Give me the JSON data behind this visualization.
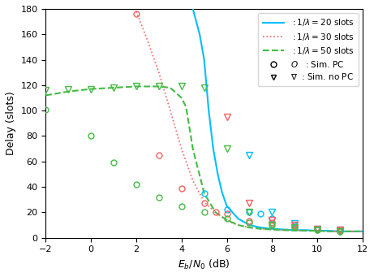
{
  "title": "",
  "xlabel": "E_b/N_0 (dB)",
  "ylabel": "Delay (slots)",
  "xlim": [
    -2,
    12
  ],
  "ylim": [
    0,
    180
  ],
  "xticks": [
    -2,
    0,
    2,
    4,
    6,
    8,
    10,
    12
  ],
  "yticks": [
    0,
    20,
    40,
    60,
    80,
    100,
    120,
    140,
    160,
    180
  ],
  "color_20": "#00BFFF",
  "color_30": "#FF6060",
  "color_50": "#44BB44",
  "analytical_20_x": [
    4.5,
    4.8,
    5.0,
    5.2,
    5.4,
    5.6,
    5.8,
    6.0,
    6.5,
    7.0,
    7.5,
    8.0,
    8.5,
    9.0,
    9.5,
    10.0,
    10.5,
    11.0,
    11.5,
    12.0
  ],
  "analytical_20_y": [
    180,
    160,
    140,
    100,
    70,
    50,
    35,
    25,
    15,
    10,
    8,
    7,
    6.5,
    6,
    6,
    5.5,
    5.5,
    5,
    5,
    5
  ],
  "analytical_30_x": [
    2.0,
    2.5,
    3.0,
    3.5,
    4.0,
    4.5,
    5.0,
    5.5,
    5.8,
    6.0,
    6.2,
    6.5,
    7.0,
    7.5,
    8.0,
    8.5,
    9.0,
    9.5,
    10.0,
    10.5,
    11.0,
    11.5,
    12.0
  ],
  "analytical_30_y": [
    178,
    155,
    130,
    100,
    70,
    45,
    28,
    20,
    16,
    14,
    12,
    10,
    8,
    7,
    6.5,
    6,
    5.8,
    5.5,
    5.5,
    5,
    5,
    5,
    5
  ],
  "analytical_50_x": [
    -2,
    -1,
    0,
    1,
    2,
    3,
    3.5,
    4.0,
    4.2,
    4.5,
    5.0,
    5.5,
    6.0,
    6.5,
    7.0,
    7.5,
    8.0,
    8.5,
    9.0,
    9.5,
    10.0,
    10.5,
    11.0,
    11.5,
    12.0
  ],
  "analytical_50_y": [
    112,
    115,
    117,
    118,
    119,
    119,
    118,
    110,
    103,
    70,
    35,
    20,
    14,
    10,
    8,
    7,
    6.5,
    6,
    5.8,
    5.5,
    5.5,
    5,
    5,
    5,
    5
  ],
  "sim_pc_20_x": [
    5.0,
    6.0,
    7.0,
    7.5,
    8.0,
    9.0,
    10.0,
    11.0
  ],
  "sim_pc_20_y": [
    35,
    22,
    20,
    19,
    15,
    10,
    7,
    6
  ],
  "sim_pc_30_x": [
    2.0,
    3.0,
    4.0,
    5.0,
    5.5,
    6.0,
    7.0,
    8.0,
    9.0,
    10.0,
    11.0
  ],
  "sim_pc_30_y": [
    176,
    65,
    39,
    27,
    20,
    19,
    13,
    12,
    9,
    7,
    6
  ],
  "sim_pc_50_x": [
    -2,
    0,
    1,
    2,
    3,
    4,
    5,
    6,
    7,
    8,
    9,
    10,
    11
  ],
  "sim_pc_50_y": [
    101,
    80,
    59,
    42,
    32,
    25,
    20,
    15,
    12,
    10,
    8,
    6,
    5
  ],
  "sim_nopc_20_x": [
    7.0,
    8.0,
    9.0,
    10.0,
    11.0
  ],
  "sim_nopc_20_y": [
    65,
    20,
    11,
    7,
    6
  ],
  "sim_nopc_30_x": [
    6.0,
    7.0,
    8.0,
    9.0,
    10.0,
    11.0
  ],
  "sim_nopc_30_y": [
    95,
    27,
    14,
    10,
    7,
    6
  ],
  "sim_nopc_50_x": [
    -2,
    -1,
    0,
    1,
    2,
    3,
    4,
    5,
    6,
    7,
    8,
    9,
    10,
    11
  ],
  "sim_nopc_50_y": [
    116,
    117,
    117,
    118,
    119,
    119,
    119,
    118,
    70,
    20,
    10,
    8,
    6,
    5
  ]
}
